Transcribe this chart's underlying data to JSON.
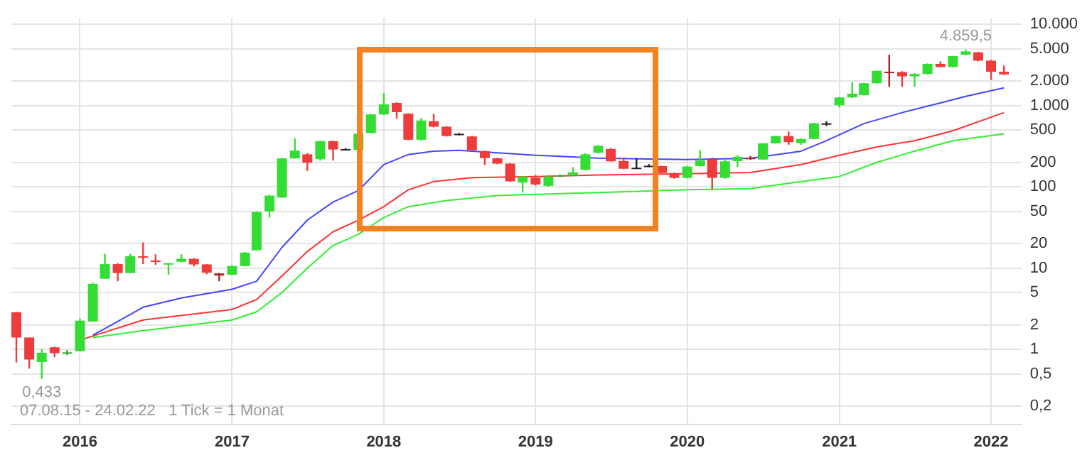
{
  "chart_data": {
    "type": "candlestick",
    "log": "y",
    "grid": true,
    "legend": false,
    "x": [
      "2015-08",
      "2015-09",
      "2015-10",
      "2015-11",
      "2015-12",
      "2016-01",
      "2016-02",
      "2016-03",
      "2016-04",
      "2016-05",
      "2016-06",
      "2016-07",
      "2016-08",
      "2016-09",
      "2016-10",
      "2016-11",
      "2016-12",
      "2017-01",
      "2017-02",
      "2017-03",
      "2017-04",
      "2017-05",
      "2017-06",
      "2017-07",
      "2017-08",
      "2017-09",
      "2017-10",
      "2017-11",
      "2017-12",
      "2018-01",
      "2018-02",
      "2018-03",
      "2018-04",
      "2018-05",
      "2018-06",
      "2018-07",
      "2018-08",
      "2018-09",
      "2018-10",
      "2018-11",
      "2018-12",
      "2019-01",
      "2019-02",
      "2019-03",
      "2019-04",
      "2019-05",
      "2019-06",
      "2019-07",
      "2019-08",
      "2019-09",
      "2019-10",
      "2019-11",
      "2019-12",
      "2020-01",
      "2020-02",
      "2020-03",
      "2020-04",
      "2020-05",
      "2020-06",
      "2020-07",
      "2020-08",
      "2020-09",
      "2020-10",
      "2020-11",
      "2020-12",
      "2021-01",
      "2021-02",
      "2021-03",
      "2021-04",
      "2021-05",
      "2021-06",
      "2021-07",
      "2021-08",
      "2021-09",
      "2021-10",
      "2021-11",
      "2021-12",
      "2022-01",
      "2022-02"
    ],
    "ohlc": [
      [
        2.86,
        2.9,
        0.69,
        1.4
      ],
      [
        1.4,
        1.4,
        0.58,
        0.75
      ],
      [
        0.7,
        1.0,
        0.433,
        0.91
      ],
      [
        1.06,
        1.08,
        0.8,
        0.9
      ],
      [
        0.89,
        0.98,
        0.85,
        0.92
      ],
      [
        0.95,
        2.4,
        0.95,
        2.26
      ],
      [
        2.2,
        6.6,
        2.2,
        6.4
      ],
      [
        7.4,
        15,
        7.4,
        11.2
      ],
      [
        11.2,
        11.5,
        6.9,
        8.7
      ],
      [
        8.7,
        15,
        8.7,
        14
      ],
      [
        14,
        20.7,
        11.2,
        13.4
      ],
      [
        12.4,
        14.8,
        11,
        12.1
      ],
      [
        11.1,
        11.6,
        8.3,
        11.5
      ],
      [
        12,
        14.8,
        11.8,
        13
      ],
      [
        13,
        13.3,
        10.5,
        11.1
      ],
      [
        11.1,
        11.2,
        8.4,
        8.8
      ],
      [
        8.6,
        8.7,
        6.9,
        8.1
      ],
      [
        8.3,
        10.8,
        8.2,
        10.6
      ],
      [
        10.6,
        15.8,
        10.5,
        15.5
      ],
      [
        16.6,
        50,
        16.5,
        49
      ],
      [
        50,
        80,
        42,
        78
      ],
      [
        74,
        228,
        73,
        224
      ],
      [
        224,
        395,
        222,
        280
      ],
      [
        251,
        260,
        157,
        198
      ],
      [
        219,
        370,
        210,
        365
      ],
      [
        365,
        370,
        211,
        288
      ],
      [
        292,
        300,
        280,
        290
      ],
      [
        285,
        460,
        280,
        451
      ],
      [
        461,
        790,
        455,
        778
      ],
      [
        778,
        1430,
        770,
        1035
      ],
      [
        1077,
        1100,
        690,
        830
      ],
      [
        795,
        810,
        375,
        380
      ],
      [
        380,
        700,
        370,
        656
      ],
      [
        640,
        795,
        540,
        550
      ],
      [
        550,
        560,
        415,
        422
      ],
      [
        450,
        460,
        430,
        443
      ],
      [
        417,
        425,
        278,
        282
      ],
      [
        275,
        280,
        186,
        226
      ],
      [
        225,
        228,
        190,
        193
      ],
      [
        193,
        196,
        115,
        117
      ],
      [
        113,
        136,
        85,
        134
      ],
      [
        129,
        140,
        104,
        107
      ],
      [
        103,
        140,
        100,
        134
      ],
      [
        134,
        142,
        132,
        139
      ],
      [
        139,
        175,
        137,
        151
      ],
      [
        162,
        260,
        160,
        251
      ],
      [
        263,
        325,
        258,
        320
      ],
      [
        293,
        300,
        205,
        206
      ],
      [
        208,
        230,
        165,
        167
      ],
      [
        172,
        225,
        165,
        170
      ],
      [
        182,
        190,
        175,
        180
      ],
      [
        180,
        183,
        146,
        148
      ],
      [
        148,
        150,
        126,
        129
      ],
      [
        129,
        180,
        127,
        178
      ],
      [
        180,
        282,
        178,
        211
      ],
      [
        217,
        230,
        93,
        129
      ],
      [
        129,
        215,
        126,
        206
      ],
      [
        207,
        245,
        175,
        234
      ],
      [
        228,
        240,
        215,
        220
      ],
      [
        217,
        345,
        215,
        343
      ],
      [
        343,
        425,
        340,
        422
      ],
      [
        422,
        480,
        330,
        355
      ],
      [
        346,
        395,
        330,
        388
      ],
      [
        388,
        610,
        385,
        605
      ],
      [
        600,
        640,
        560,
        605
      ],
      [
        1010,
        1280,
        950,
        1260
      ],
      [
        1260,
        1940,
        1240,
        1400
      ],
      [
        1345,
        1900,
        1330,
        1885
      ],
      [
        1885,
        2700,
        1850,
        2680
      ],
      [
        2610,
        4230,
        1700,
        2510
      ],
      [
        2590,
        2650,
        1700,
        2290
      ],
      [
        2290,
        2500,
        1700,
        2450
      ],
      [
        2450,
        3300,
        2400,
        3260
      ],
      [
        3260,
        3500,
        2950,
        2980
      ],
      [
        2980,
        4100,
        2950,
        4070
      ],
      [
        4230,
        4859.5,
        4150,
        4640
      ],
      [
        4520,
        4600,
        3500,
        3570
      ],
      [
        3570,
        3650,
        2070,
        2610
      ],
      [
        2610,
        3100,
        2380,
        2420
      ]
    ],
    "colors": [
      "#ee3b3b",
      "#ee3b3b",
      "#33dd33",
      "#ee3b3b",
      "#33aa33",
      "#33dd33",
      "#33dd33",
      "#33dd33",
      "#ee3b3b",
      "#33dd33",
      "#ee3b3b",
      "#ee3b3b",
      "#33dd33",
      "#33dd33",
      "#ee3b3b",
      "#ee3b3b",
      "#aa2222",
      "#33dd33",
      "#33dd33",
      "#33dd33",
      "#33dd33",
      "#33dd33",
      "#33dd33",
      "#ee3b3b",
      "#33dd33",
      "#ee3b3b",
      "#222222",
      "#33dd33",
      "#33dd33",
      "#33dd33",
      "#ee3b3b",
      "#ee3b3b",
      "#33dd33",
      "#ee3b3b",
      "#ee3b3b",
      "#222222",
      "#ee3b3b",
      "#ee3b3b",
      "#ee3b3b",
      "#ee3b3b",
      "#33dd33",
      "#ee3b3b",
      "#33dd33",
      "#33aa33",
      "#33dd33",
      "#33dd33",
      "#33dd33",
      "#ee3b3b",
      "#ee3b3b",
      "#222222",
      "#222222",
      "#ee3b3b",
      "#ee3b3b",
      "#33dd33",
      "#33dd33",
      "#ee3b3b",
      "#33dd33",
      "#33dd33",
      "#aa2222",
      "#33dd33",
      "#33dd33",
      "#ee3b3b",
      "#33dd33",
      "#33dd33",
      "#222222",
      "#33dd33",
      "#33dd33",
      "#33dd33",
      "#33dd33",
      "#aa2222",
      "#ee3b3b",
      "#33dd33",
      "#33dd33",
      "#ee3b3b",
      "#33dd33",
      "#33dd33",
      "#ee3b3b",
      "#ee3b3b",
      "#ee3b3b"
    ],
    "series": [
      {
        "type": "line",
        "color": "#4444ff",
        "x": [
          "2016-02",
          "2016-03",
          "2016-06",
          "2016-09",
          "2017-01",
          "2017-03",
          "2017-05",
          "2017-07",
          "2017-09",
          "2017-11",
          "2018-01",
          "2018-03",
          "2018-05",
          "2018-07",
          "2018-10",
          "2019-01",
          "2019-06",
          "2019-10",
          "2020-01",
          "2020-06",
          "2020-10",
          "2020-12",
          "2021-03",
          "2021-06",
          "2021-09",
          "2021-11",
          "2022-02"
        ],
        "values": [
          1.5,
          1.8,
          3.3,
          4.3,
          5.5,
          6.9,
          18,
          39,
          65,
          90,
          188,
          250,
          275,
          282,
          262,
          245,
          226,
          220,
          217,
          225,
          275,
          370,
          600,
          820,
          1080,
          1300,
          1650
        ]
      },
      {
        "type": "line",
        "color": "#33ee33",
        "x": [
          "2016-02",
          "2016-06",
          "2017-01",
          "2017-03",
          "2017-05",
          "2017-07",
          "2017-09",
          "2017-11",
          "2018-01",
          "2018-03",
          "2018-06",
          "2018-10",
          "2019-01",
          "2019-06",
          "2020-01",
          "2020-06",
          "2020-10",
          "2021-01",
          "2021-04",
          "2021-07",
          "2021-10",
          "2022-02"
        ],
        "values": [
          1.4,
          1.7,
          2.3,
          2.9,
          5,
          10,
          19,
          26,
          42,
          57,
          68,
          78,
          81,
          85,
          92,
          95,
          116,
          134,
          200,
          275,
          370,
          450
        ]
      },
      {
        "type": "line",
        "color": "#ff3333",
        "x": [
          "2016-01",
          "2016-06",
          "2017-01",
          "2017-03",
          "2017-05",
          "2017-07",
          "2017-09",
          "2017-11",
          "2018-01",
          "2018-03",
          "2018-05",
          "2018-08",
          "2019-01",
          "2019-06",
          "2020-01",
          "2020-06",
          "2020-10",
          "2021-01",
          "2021-04",
          "2021-07",
          "2021-10",
          "2022-02"
        ],
        "values": [
          1.3,
          2.3,
          3.1,
          4.1,
          8,
          16,
          28,
          39,
          57,
          92,
          116,
          130,
          134,
          140,
          145,
          150,
          188,
          245,
          310,
          370,
          490,
          820
        ]
      }
    ],
    "xlim": [
      "2015-07-20",
      "2022-03-15"
    ],
    "xticks": [
      {
        "value": "2016",
        "label": "2016"
      },
      {
        "value": "2017",
        "label": "2017"
      },
      {
        "value": "2018",
        "label": "2018"
      },
      {
        "value": "2019",
        "label": "2019"
      },
      {
        "value": "2020",
        "label": "2020"
      },
      {
        "value": "2021",
        "label": "2021"
      },
      {
        "value": "2022",
        "label": "2022"
      }
    ],
    "ylim": [
      0.12,
      12000
    ],
    "yticks": [
      {
        "value": 0.2,
        "label": "0,2"
      },
      {
        "value": 0.5,
        "label": "0,5"
      },
      {
        "value": 1,
        "label": "1"
      },
      {
        "value": 2,
        "label": "2"
      },
      {
        "value": 5,
        "label": "5"
      },
      {
        "value": 10,
        "label": "10"
      },
      {
        "value": 20,
        "label": "20"
      },
      {
        "value": 50,
        "label": "50"
      },
      {
        "value": 100,
        "label": "100"
      },
      {
        "value": 200,
        "label": "200"
      },
      {
        "value": 500,
        "label": "500"
      },
      {
        "value": 1000,
        "label": "1.000"
      },
      {
        "value": 2000,
        "label": "2.000"
      },
      {
        "value": 5000,
        "label": "5.000"
      },
      {
        "value": 10000,
        "label": "10.000"
      }
    ],
    "annotations": [
      {
        "text": "0,433",
        "x": "2015-10",
        "y": 0.433
      },
      {
        "text": "4.859,5",
        "x": "2021-11",
        "y": 4859.5
      },
      "07.08.15 - 24.02.22   1 Tick = 1 Monat"
    ]
  }
}
